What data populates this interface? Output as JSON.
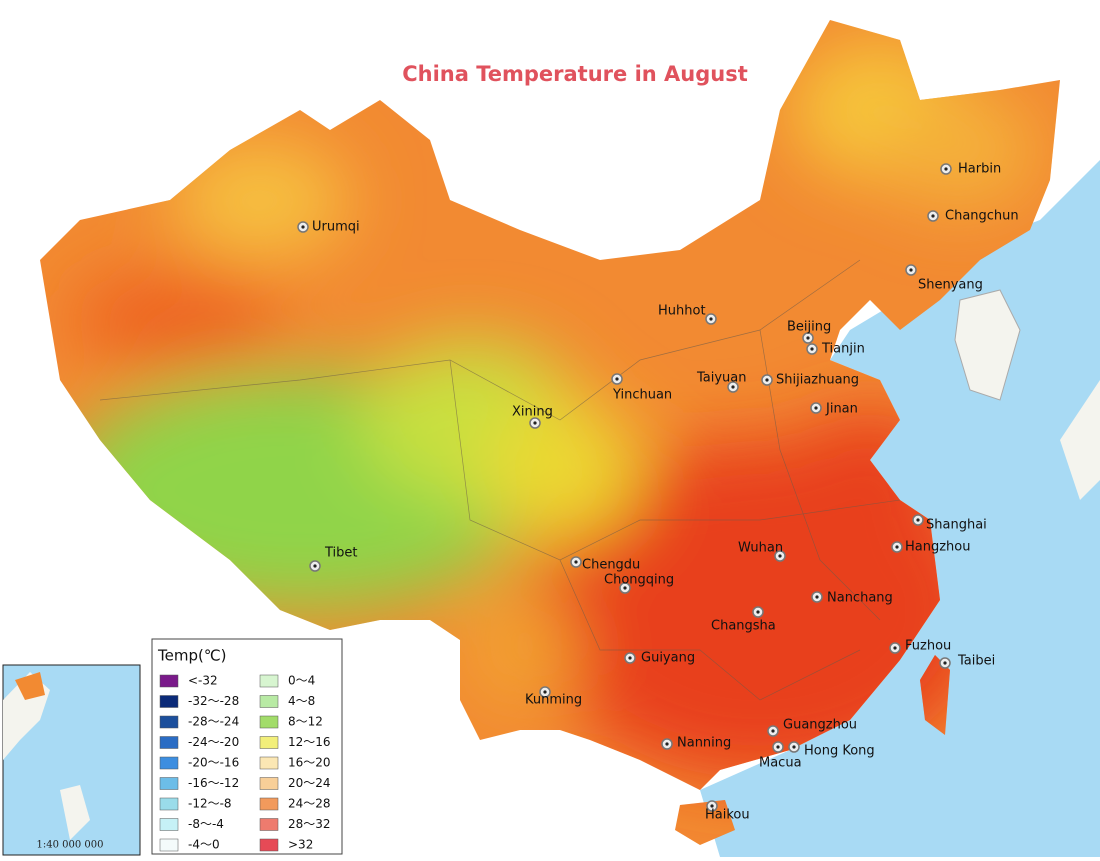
{
  "title": "China Temperature in August",
  "cities": [
    "Harbin",
    "Changchun",
    "Shenyang",
    "Urumqi",
    "Huhhot",
    "Beijing",
    "Tianjin",
    "Yinchuan",
    "Taiyuan",
    "Shijiazhuang",
    "Xining",
    "Jinan",
    "Shanghai",
    "Hangzhou",
    "Wuhan",
    "Chengdu",
    "Chongqing",
    "Tibet",
    "Nanchang",
    "Changsha",
    "Guiyang",
    "Fuzhou",
    "Taibei",
    "Kunming",
    "Guangzhou",
    "Nanning",
    "Hong Kong",
    "Macua",
    "Haikou"
  ],
  "legend": {
    "title": "Temp(℃)",
    "items": [
      {
        "label": "<-32",
        "color": "#7a1a8a"
      },
      {
        "label": "-32～-28",
        "color": "#0b2a78"
      },
      {
        "label": "-28～-24",
        "color": "#1c4f9c"
      },
      {
        "label": "-24～-20",
        "color": "#2a6cc4"
      },
      {
        "label": "-20～-16",
        "color": "#3d8ee0"
      },
      {
        "label": "-16～-12",
        "color": "#6cbde8"
      },
      {
        "label": "-12～-8",
        "color": "#9adcea"
      },
      {
        "label": "-8～-4",
        "color": "#c6f1f6"
      },
      {
        "label": "-4～0",
        "color": "#f4fbfb"
      },
      {
        "label": "0～4",
        "color": "#d7f5d0"
      },
      {
        "label": "4～8",
        "color": "#b8eaa4"
      },
      {
        "label": "8～12",
        "color": "#a2dc6a"
      },
      {
        "label": "12～16",
        "color": "#f2ef7a"
      },
      {
        "label": "16～20",
        "color": "#fbe7b4"
      },
      {
        "label": "20～24",
        "color": "#f8cf98"
      },
      {
        "label": "24～28",
        "color": "#f29a5c"
      },
      {
        "label": "28～32",
        "color": "#ee7b6e"
      },
      {
        "label": ">32",
        "color": "#e64a56"
      }
    ]
  },
  "inset_scale": "1:40 000 000"
}
